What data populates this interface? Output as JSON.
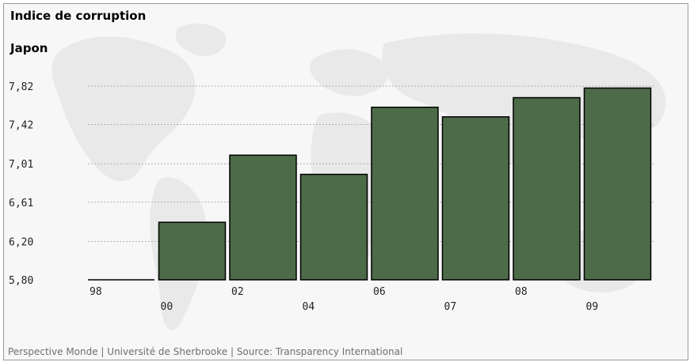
{
  "page": {
    "title": "Indice de corruption",
    "country": "Japon",
    "footer": "Perspective Monde | Université de Sherbrooke | Source: Transparency International"
  },
  "chart_data": {
    "type": "bar",
    "title": "Indice de corruption",
    "subtitle": "Japon",
    "categories": [
      "98",
      "00",
      "02",
      "04",
      "06",
      "07",
      "08",
      "09"
    ],
    "values": [
      5.8,
      6.4,
      7.1,
      6.9,
      7.6,
      7.5,
      7.7,
      7.8
    ],
    "y_ticks": [
      "5,80",
      "6,20",
      "6,61",
      "7,01",
      "7,42",
      "7,82"
    ],
    "y_tick_values": [
      5.8,
      6.2,
      6.61,
      7.01,
      7.42,
      7.82
    ],
    "ylim": [
      5.8,
      7.82
    ],
    "grid": true,
    "colors": {
      "bar": "#4d6b48",
      "bar_edge": "#000000",
      "grid": "#b0b0b0"
    }
  }
}
